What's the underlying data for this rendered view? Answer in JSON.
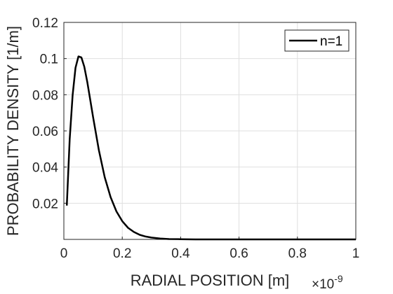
{
  "chart_data": {
    "type": "line",
    "xlabel": "RADIAL POSITION [m]",
    "ylabel": "PROBABILITY DENSITY [1/m]",
    "x_exponent": {
      "base": "×10",
      "power": "-9"
    },
    "xlim": [
      0,
      1
    ],
    "ylim": [
      0,
      0.12
    ],
    "x_ticks": [
      0,
      0.2,
      0.4,
      0.6,
      0.8,
      1
    ],
    "x_tick_labels": [
      "0",
      "0.2",
      "0.4",
      "0.6",
      "0.8",
      "1"
    ],
    "y_ticks": [
      0.02,
      0.04,
      0.06,
      0.08,
      0.1,
      0.12
    ],
    "y_tick_labels": [
      "0.02",
      "0.04",
      "0.06",
      "0.08",
      "0.1",
      "0.12"
    ],
    "grid": true,
    "legend_position": "top-right",
    "series": [
      {
        "name": "n=1",
        "color": "#000000",
        "x": [
          0.01,
          0.02,
          0.03,
          0.04,
          0.05,
          0.06,
          0.07,
          0.08,
          0.09,
          0.1,
          0.12,
          0.14,
          0.16,
          0.18,
          0.2,
          0.22,
          0.24,
          0.26,
          0.28,
          0.3,
          0.33,
          0.36,
          0.4,
          0.45,
          0.5,
          0.6,
          0.7,
          0.8,
          0.9,
          1.0
        ],
        "y": [
          0.0187,
          0.0554,
          0.0798,
          0.0949,
          0.1012,
          0.1006,
          0.0955,
          0.0872,
          0.0776,
          0.0677,
          0.0493,
          0.0344,
          0.0234,
          0.0155,
          0.0101,
          0.0064,
          0.0041,
          0.0025,
          0.0016,
          0.001,
          0.0005,
          0.0002,
          0.0001,
          0.0,
          0.0,
          0.0,
          0.0,
          0.0,
          0.0,
          0.0
        ]
      }
    ]
  }
}
